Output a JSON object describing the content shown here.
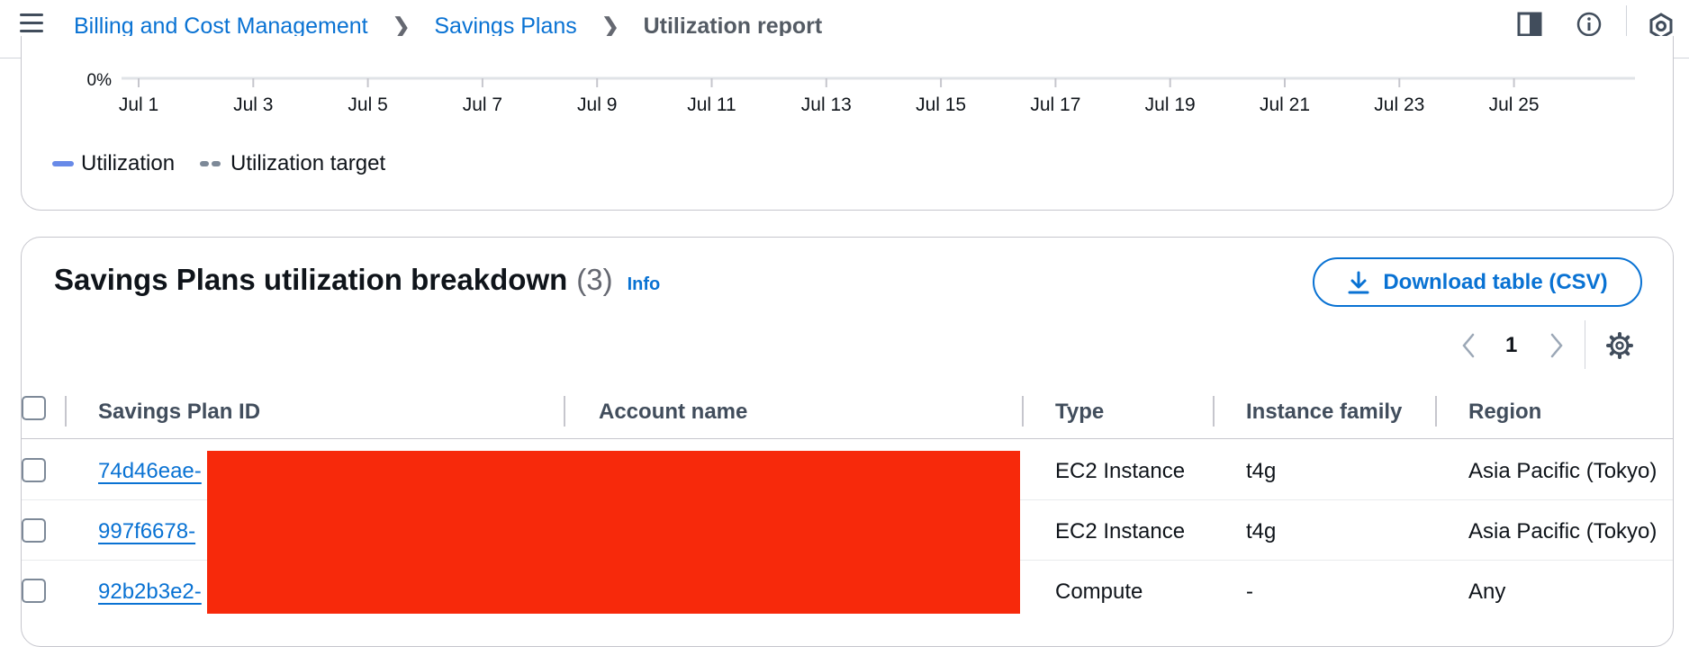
{
  "header": {
    "breadcrumbs": [
      "Billing and Cost Management",
      "Savings Plans"
    ],
    "current_page": "Utilization report",
    "icons": [
      "menu-icon",
      "panel-icon",
      "info-icon",
      "settings-hex-icon"
    ]
  },
  "chart_data": {
    "type": "line",
    "ytick_labels": [
      "0%"
    ],
    "xtick_labels": [
      "Jul 1",
      "Jul 3",
      "Jul 5",
      "Jul 7",
      "Jul 9",
      "Jul 11",
      "Jul 13",
      "Jul 15",
      "Jul 17",
      "Jul 19",
      "Jul 21",
      "Jul 23",
      "Jul 25"
    ],
    "legend": [
      {
        "name": "Utilization",
        "color": "#688ae8",
        "style": "solid"
      },
      {
        "name": "Utilization target",
        "color": "#7d8998",
        "style": "dashed"
      }
    ],
    "series": [
      {
        "name": "Utilization",
        "values": []
      },
      {
        "name": "Utilization target",
        "values": []
      }
    ],
    "grid": false,
    "legend_position": "bottom-left"
  },
  "breakdown": {
    "title": "Savings Plans utilization breakdown",
    "count": "(3)",
    "info_label": "Info",
    "download_label": "Download table (CSV)",
    "current_page": "1",
    "columns": [
      "Savings Plan ID",
      "Account name",
      "Type",
      "Instance family",
      "Region"
    ],
    "rows": [
      {
        "id": "74d46eae-",
        "account": "",
        "type": "EC2 Instance",
        "family": "t4g",
        "region": "Asia Pacific (Tokyo)"
      },
      {
        "id": "997f6678-",
        "account": "",
        "type": "EC2 Instance",
        "family": "t4g",
        "region": "Asia Pacific (Tokyo)"
      },
      {
        "id": "92b2b3e2-",
        "account": "",
        "type": "Compute",
        "family": "-",
        "region": "Any"
      }
    ]
  },
  "colors": {
    "link": "#0972d3",
    "utilization": "#688ae8",
    "target": "#7d8998",
    "redaction": "#f7290b"
  }
}
